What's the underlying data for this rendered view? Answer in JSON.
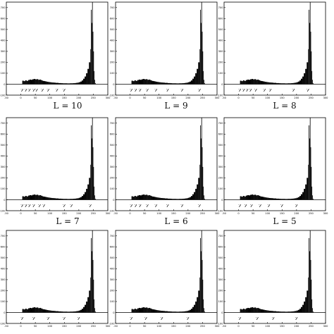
{
  "colors": {
    "ink": "#000000",
    "background": "#ffffff"
  },
  "panel_titles": [
    "",
    "",
    "",
    "L = 10",
    "L = 9",
    "L = 8",
    "L = 7",
    "L = 6",
    "L = 5"
  ],
  "axes": {
    "xlim": [
      -50,
      300
    ],
    "ylim": [
      -100,
      750
    ],
    "xticks": [
      "-50",
      "0",
      "50",
      "100",
      "150",
      "200",
      "250",
      "300"
    ],
    "yticks": [
      "-100",
      "0",
      "100",
      "200",
      "300",
      "400",
      "500",
      "600",
      "700"
    ]
  },
  "chart_data": {
    "type": "bar",
    "grid": false,
    "shared_histogram": {
      "x": [
        5,
        10,
        15,
        20,
        25,
        30,
        35,
        40,
        45,
        50,
        55,
        60,
        65,
        70,
        75,
        80,
        85,
        90,
        95,
        100,
        105,
        110,
        115,
        120,
        125,
        130,
        135,
        140,
        145,
        150,
        155,
        160,
        165,
        170,
        175,
        180,
        185,
        190,
        195,
        200,
        205,
        210,
        215,
        220,
        225,
        230,
        235,
        240,
        242,
        244,
        246,
        248,
        250,
        252,
        254,
        256
      ],
      "values": [
        32,
        28,
        35,
        30,
        38,
        42,
        40,
        45,
        48,
        44,
        46,
        40,
        42,
        36,
        30,
        28,
        25,
        22,
        20,
        18,
        16,
        15,
        14,
        12,
        12,
        10,
        10,
        9,
        8,
        8,
        8,
        7,
        7,
        8,
        8,
        9,
        10,
        12,
        14,
        18,
        24,
        34,
        50,
        70,
        100,
        140,
        200,
        320,
        680,
        560,
        760,
        480,
        300,
        120,
        40,
        10
      ]
    },
    "panels": [
      {
        "title": "",
        "markers": [
          5,
          18,
          30,
          45,
          55,
          75,
          95,
          125,
          150
        ]
      },
      {
        "title": "",
        "markers": [
          5,
          20,
          35,
          60,
          90,
          130,
          180,
          240
        ]
      },
      {
        "title": "",
        "markers": [
          5,
          18,
          30,
          42,
          60,
          90,
          110,
          190,
          240
        ]
      },
      {
        "title": "L = 10",
        "markers": [
          5,
          18,
          30,
          45,
          65,
          80,
          150,
          175,
          240
        ]
      },
      {
        "title": "L = 9",
        "markers": [
          5,
          20,
          35,
          60,
          90,
          130,
          180,
          240
        ]
      },
      {
        "title": "L = 8",
        "markers": [
          5,
          25,
          45,
          75,
          105,
          150,
          200
        ]
      },
      {
        "title": "L = 7",
        "markers": [
          5,
          45,
          95,
          150,
          200
        ]
      },
      {
        "title": "L = 6",
        "markers": [
          5,
          55,
          110,
          200
        ]
      },
      {
        "title": "L = 5",
        "markers": [
          5,
          65,
          120,
          200
        ]
      }
    ]
  }
}
